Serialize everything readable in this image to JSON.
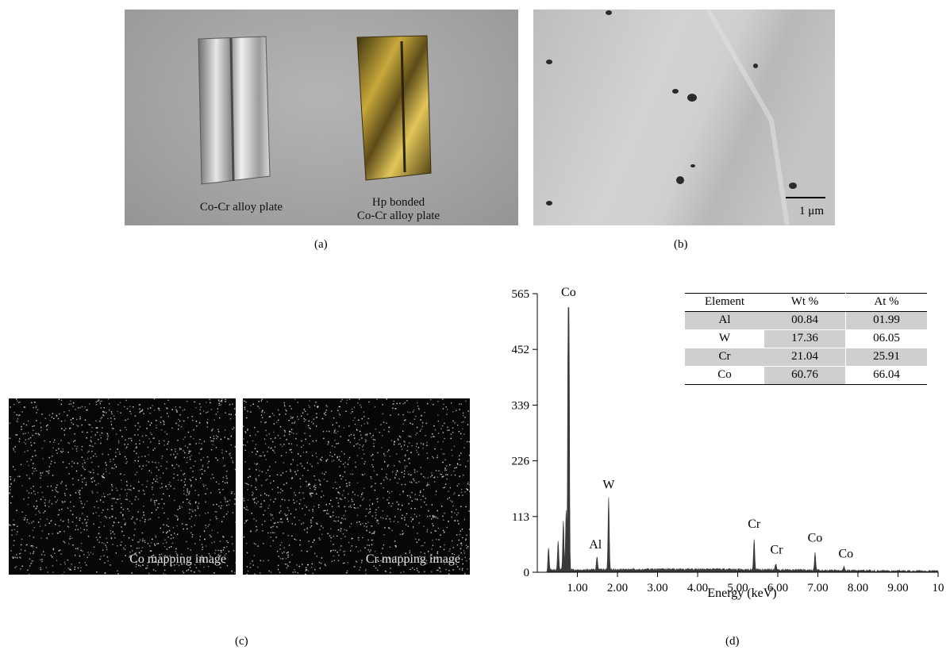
{
  "panels": {
    "a": {
      "label": "(a)",
      "captions": [
        "Co-Cr alloy plate",
        "Hp bonded",
        "Co-Cr alloy plate"
      ]
    },
    "b": {
      "label": "(b)",
      "scale_bar": "1 μm"
    },
    "c": {
      "label": "(c)",
      "left_caption": "Co mapping image",
      "right_caption": "Cr mapping image"
    },
    "d": {
      "label": "(d)"
    }
  },
  "colors": {
    "spectrum_fill": "#3a3a3a",
    "map_background": "#070707",
    "map_dots": "#e8e8e8",
    "table_shade": "#cfcfcf"
  },
  "table": {
    "headers": [
      "Element",
      "Wt %",
      "At %"
    ],
    "rows": [
      {
        "element": "Al",
        "wt": "00.84",
        "at": "01.99"
      },
      {
        "element": "W",
        "wt": "17.36",
        "at": "06.05"
      },
      {
        "element": "Cr",
        "wt": "21.04",
        "at": "25.91"
      },
      {
        "element": "Co",
        "wt": "60.76",
        "at": "66.04"
      }
    ]
  },
  "chart_data": {
    "type": "area",
    "xlabel": "Energy (keV)",
    "ylabel": "",
    "xlim": [
      0,
      10
    ],
    "ylim": [
      0,
      565
    ],
    "x_tick_labels": [
      "1.00",
      "2.00",
      "3.00",
      "4.00",
      "5.00",
      "6.00",
      "7.00",
      "8.00",
      "9.00",
      "10"
    ],
    "x_ticks": [
      1,
      2,
      3,
      4,
      5,
      6,
      7,
      8,
      9,
      10
    ],
    "y_ticks": [
      0,
      113,
      226,
      339,
      452,
      565
    ],
    "peaks": [
      {
        "x": 0.28,
        "y": 45
      },
      {
        "x": 0.52,
        "y": 60
      },
      {
        "x": 0.65,
        "y": 100
      },
      {
        "x": 0.72,
        "y": 120
      },
      {
        "x": 0.78,
        "y": 415
      },
      {
        "x": 0.78,
        "y": 535
      },
      {
        "x": 1.49,
        "y": 28
      },
      {
        "x": 1.78,
        "y": 145
      },
      {
        "x": 5.41,
        "y": 62
      },
      {
        "x": 5.95,
        "y": 12
      },
      {
        "x": 6.93,
        "y": 35
      },
      {
        "x": 7.65,
        "y": 8
      }
    ],
    "annotations": [
      {
        "label": "Co",
        "x": 0.78,
        "y": 560
      },
      {
        "label": "W",
        "x": 1.78,
        "y": 170
      },
      {
        "label": "Al",
        "x": 1.45,
        "y": 48
      },
      {
        "label": "Cr",
        "x": 5.41,
        "y": 90
      },
      {
        "label": "Cr",
        "x": 5.97,
        "y": 38
      },
      {
        "label": "Co",
        "x": 6.93,
        "y": 62
      },
      {
        "label": "Co",
        "x": 7.7,
        "y": 30
      }
    ]
  }
}
